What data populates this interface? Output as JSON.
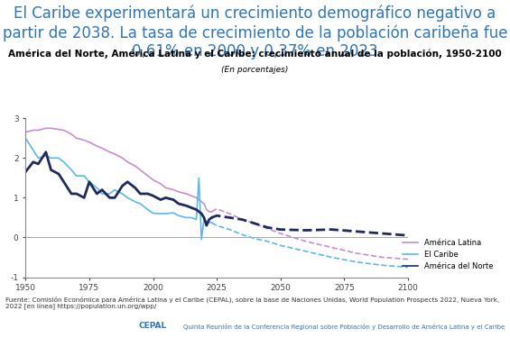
{
  "chart_data": {
    "type": "line",
    "title": "El Caribe experimentará un crecimiento demográfico negativo a partir de 2038. La tasa de crecimiento de la población caribeña fue 0,61% en 2000 y 0,37% en 2023",
    "subtitle": "América del Norte, América Latina y el Caribe: crecimiento anual de la población, 1950-2100",
    "annotations": [
      "(En porcentajes)"
    ],
    "source": "Fuente: Comisión Económica para América Latina y el Caribe (CEPAL), sobre la base de Naciones Unidas, World Population Prospects 2022, Nueva York, 2022 [en línea] https://population.un.org/wpp/",
    "footer": [
      "CEPAL",
      "Quinta Reunión de la Conferencia Regional sobre Población y Desarrollo de América Latina y el Caribe"
    ],
    "x": [
      1950,
      1953,
      1955,
      1958,
      1960,
      1963,
      1965,
      1968,
      1970,
      1973,
      1975,
      1978,
      1980,
      1983,
      1985,
      1988,
      1990,
      1993,
      1995,
      1998,
      2000,
      2003,
      2005,
      2008,
      2010,
      2013,
      2015,
      2017,
      2018,
      2019,
      2020,
      2021,
      2022,
      2023,
      2025,
      2030,
      2035,
      2040,
      2045,
      2050,
      2060,
      2070,
      2080,
      2090,
      2100
    ],
    "xlim": [
      1950,
      2100
    ],
    "xticks": [
      1950,
      1975,
      2000,
      2025,
      2050,
      2075,
      2100
    ],
    "ylim": [
      -1,
      3
    ],
    "yticks": [
      -1,
      0,
      1,
      2,
      3
    ],
    "grid": false,
    "legend": "lower right",
    "series": [
      {
        "name": "América Latina",
        "color": "#c48fcc",
        "values": [
          2.65,
          2.7,
          2.7,
          2.75,
          2.75,
          2.72,
          2.7,
          2.6,
          2.5,
          2.45,
          2.4,
          2.3,
          2.25,
          2.15,
          2.1,
          2.0,
          1.9,
          1.8,
          1.7,
          1.55,
          1.45,
          1.35,
          1.25,
          1.2,
          1.15,
          1.1,
          1.05,
          1.0,
          0.95,
          0.9,
          0.85,
          0.7,
          0.65,
          0.65,
          null,
          null,
          null,
          null,
          null,
          null,
          null,
          null,
          null,
          null,
          null
        ],
        "projection": [
          null,
          null,
          null,
          null,
          null,
          null,
          null,
          null,
          null,
          null,
          null,
          null,
          null,
          null,
          null,
          null,
          null,
          null,
          null,
          null,
          null,
          null,
          null,
          null,
          null,
          null,
          null,
          null,
          null,
          null,
          null,
          null,
          null,
          0.65,
          0.72,
          0.6,
          0.45,
          0.35,
          0.22,
          0.1,
          -0.1,
          -0.25,
          -0.4,
          -0.5,
          -0.55
        ]
      },
      {
        "name": "El Caribe",
        "color": "#5bb8e8",
        "values": [
          2.5,
          2.2,
          2.0,
          2.05,
          2.0,
          2.0,
          1.9,
          1.7,
          1.55,
          1.55,
          1.4,
          1.25,
          1.1,
          1.1,
          1.2,
          1.1,
          1.0,
          0.9,
          0.85,
          0.7,
          0.61,
          0.6,
          0.6,
          0.62,
          0.55,
          0.5,
          0.5,
          0.45,
          1.5,
          -0.05,
          0.45,
          0.4,
          0.38,
          0.37,
          null,
          null,
          null,
          null,
          null,
          null,
          null,
          null,
          null,
          null,
          null
        ],
        "projection": [
          null,
          null,
          null,
          null,
          null,
          null,
          null,
          null,
          null,
          null,
          null,
          null,
          null,
          null,
          null,
          null,
          null,
          null,
          null,
          null,
          null,
          null,
          null,
          null,
          null,
          null,
          null,
          null,
          null,
          null,
          null,
          null,
          null,
          0.37,
          0.3,
          0.2,
          0.07,
          -0.03,
          -0.1,
          -0.2,
          -0.35,
          -0.5,
          -0.62,
          -0.7,
          -0.75
        ]
      },
      {
        "name": "América del Norte",
        "color": "#1f2a5c",
        "values": [
          1.65,
          1.9,
          1.85,
          2.15,
          1.7,
          1.6,
          1.4,
          1.1,
          1.1,
          1.0,
          1.4,
          1.1,
          1.2,
          1.0,
          1.0,
          1.3,
          1.4,
          1.25,
          1.1,
          1.1,
          1.05,
          0.95,
          1.0,
          0.95,
          0.85,
          0.8,
          0.75,
          0.7,
          0.65,
          0.6,
          0.5,
          0.3,
          0.45,
          0.5,
          null,
          null,
          null,
          null,
          null,
          null,
          null,
          null,
          null,
          null,
          null
        ],
        "projection": [
          null,
          null,
          null,
          null,
          null,
          null,
          null,
          null,
          null,
          null,
          null,
          null,
          null,
          null,
          null,
          null,
          null,
          null,
          null,
          null,
          null,
          null,
          null,
          null,
          null,
          null,
          null,
          null,
          null,
          null,
          null,
          null,
          null,
          0.5,
          0.55,
          0.5,
          0.45,
          0.35,
          0.25,
          0.2,
          0.18,
          0.2,
          0.15,
          0.1,
          0.05
        ]
      }
    ]
  }
}
